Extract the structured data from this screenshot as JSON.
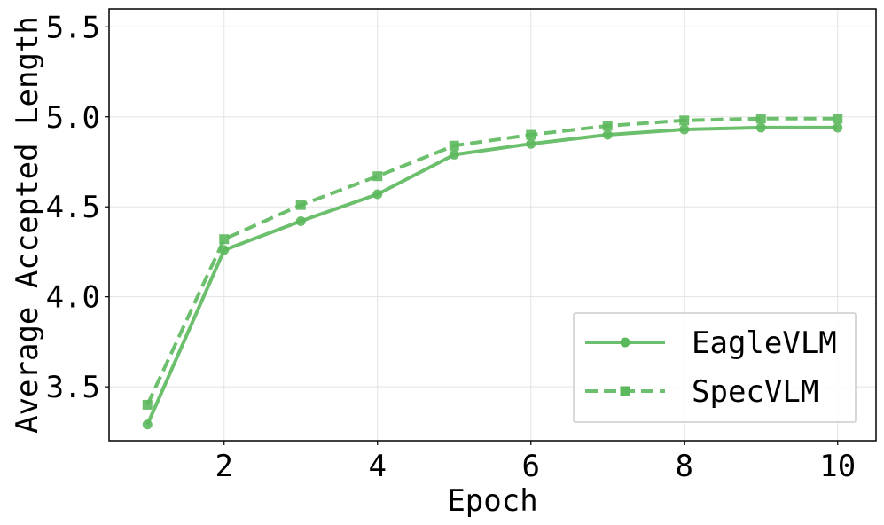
{
  "chart_data": {
    "type": "line",
    "title": "",
    "xlabel": "Epoch",
    "ylabel": "Average Accepted Length",
    "x": [
      1,
      2,
      3,
      4,
      5,
      6,
      7,
      8,
      9,
      10
    ],
    "xticks": [
      2,
      4,
      6,
      8,
      10
    ],
    "yticks": [
      3.5,
      4.0,
      4.5,
      5.0,
      5.5
    ],
    "xtick_labels": [
      "2",
      "4",
      "6",
      "8",
      "10"
    ],
    "ytick_labels": [
      "3.5",
      "4.0",
      "4.5",
      "5.0",
      "5.5"
    ],
    "xlim": [
      0.5,
      10.5
    ],
    "ylim": [
      3.2,
      5.6
    ],
    "grid": true,
    "legend_position": "bottom-right",
    "series": [
      {
        "name": "EagleVLM",
        "values": [
          3.29,
          4.26,
          4.42,
          4.57,
          4.79,
          4.85,
          4.9,
          4.93,
          4.94,
          4.94
        ],
        "color": "#5cb85c",
        "line_style": "solid",
        "marker": "circle"
      },
      {
        "name": "SpecVLM",
        "values": [
          3.4,
          4.32,
          4.51,
          4.67,
          4.84,
          4.9,
          4.95,
          4.98,
          4.99,
          4.99
        ],
        "color": "#5cb85c",
        "line_style": "dashed",
        "marker": "square"
      }
    ]
  }
}
